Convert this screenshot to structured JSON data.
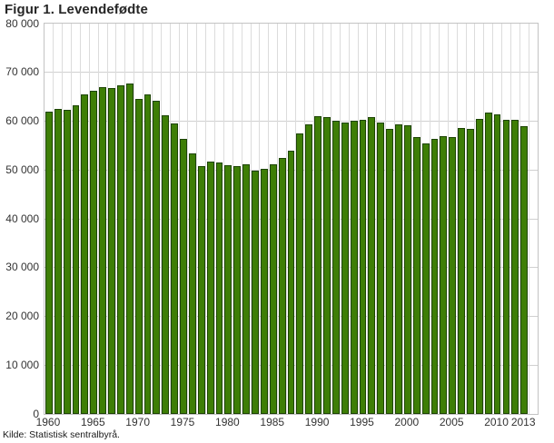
{
  "title": "Figur 1. Levendefødte",
  "source": "Kilde: Statistisk sentralbyrå.",
  "colors": {
    "bar_fill": "#3e7e06",
    "bar_border": "#1d4403",
    "hgrid": "#d0d0d0",
    "vgrid": "#dcdcdc",
    "frame": "#c3c3c3",
    "text": "#333333",
    "title_text": "#262626"
  },
  "chart_data": {
    "type": "bar",
    "title": "Figur 1. Levendefødte",
    "xlabel": "",
    "ylabel": "",
    "ylim": [
      0,
      80000
    ],
    "ytick_step": 10000,
    "ytick_labels": [
      "0",
      "10 000",
      "20 000",
      "30 000",
      "40 000",
      "50 000",
      "60 000",
      "70 000",
      "80 000"
    ],
    "xtick_years": [
      1960,
      1965,
      1970,
      1975,
      1980,
      1985,
      1990,
      1995,
      2000,
      2005,
      2010,
      2013
    ],
    "grid": "both",
    "legend_position": "none",
    "x": [
      1960,
      1961,
      1962,
      1963,
      1964,
      1965,
      1966,
      1967,
      1968,
      1969,
      1970,
      1971,
      1972,
      1973,
      1974,
      1975,
      1976,
      1977,
      1978,
      1979,
      1980,
      1981,
      1982,
      1983,
      1984,
      1985,
      1986,
      1987,
      1988,
      1989,
      1990,
      1991,
      1992,
      1993,
      1994,
      1995,
      1996,
      1997,
      1998,
      1999,
      2000,
      2001,
      2002,
      2003,
      2004,
      2005,
      2006,
      2007,
      2008,
      2009,
      2010,
      2011,
      2012,
      2013
    ],
    "values": [
      61880,
      62555,
      62254,
      63290,
      65570,
      66277,
      67061,
      66779,
      67350,
      67746,
      64551,
      65550,
      64260,
      61208,
      59603,
      56345,
      53474,
      50877,
      51749,
      51580,
      51039,
      50708,
      51245,
      49937,
      50274,
      51134,
      52514,
      54027,
      57526,
      59303,
      60939,
      60808,
      60109,
      59678,
      60092,
      60292,
      60927,
      59801,
      58352,
      59298,
      59234,
      56696,
      55434,
      56458,
      56951,
      56756,
      58545,
      58459,
      60497,
      61807,
      61442,
      60220,
      60255,
      58995
    ]
  }
}
